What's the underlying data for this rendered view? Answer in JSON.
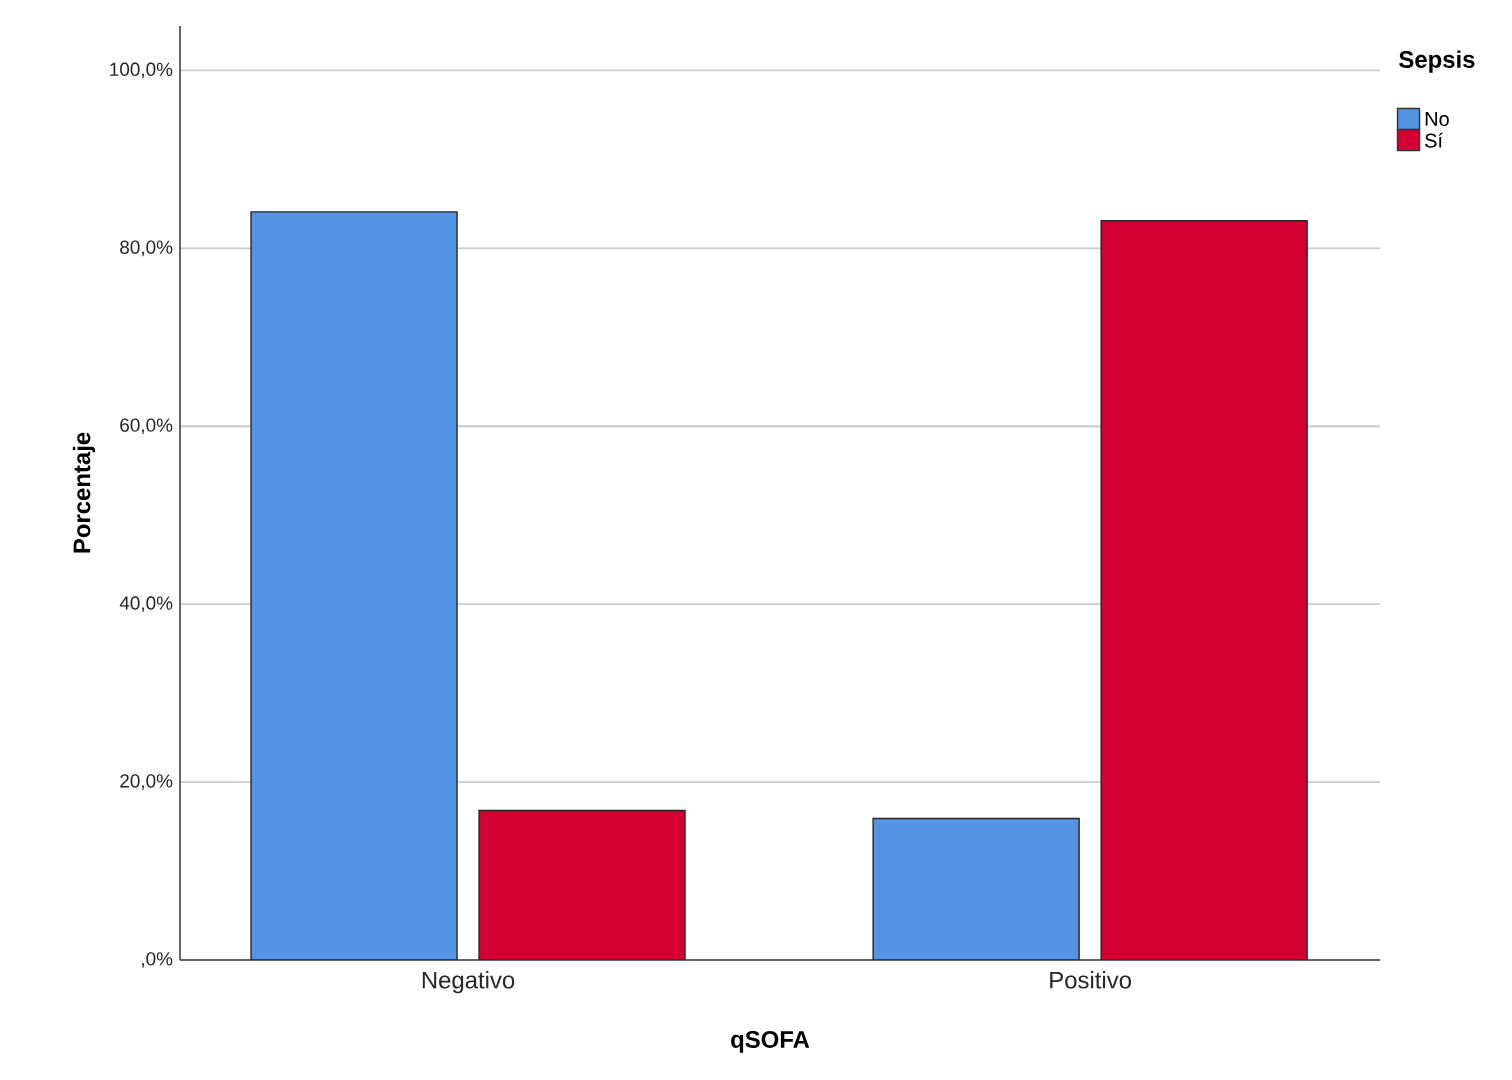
{
  "chart_data": {
    "type": "bar",
    "xlabel": "qSOFA",
    "ylabel": "Porcentaje",
    "legend_title": "Sepsis",
    "categories": [
      "Negativo",
      "Positivo"
    ],
    "series": [
      {
        "name": "No",
        "color": "#5593e4",
        "values": [
          84.1,
          15.9
        ]
      },
      {
        "name": "Sí",
        "color": "#d50032",
        "values": [
          16.8,
          83.1
        ]
      }
    ],
    "ylim": [
      0,
      105
    ],
    "yticks": [
      {
        "value": 0,
        "label": ",0%"
      },
      {
        "value": 20,
        "label": "20,0%"
      },
      {
        "value": 40,
        "label": "40,0%"
      },
      {
        "value": 60,
        "label": "60,0%"
      },
      {
        "value": 80,
        "label": "80,0%"
      },
      {
        "value": 100,
        "label": "100,0%"
      }
    ],
    "grid": "y",
    "legend": "top right"
  }
}
